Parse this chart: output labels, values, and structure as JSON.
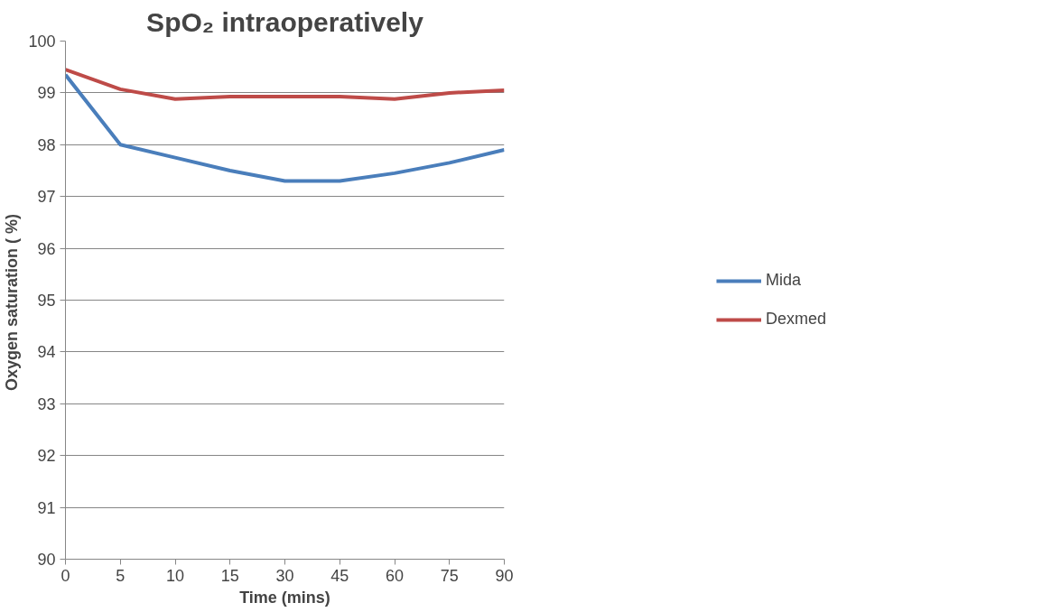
{
  "chart_data": {
    "type": "line",
    "title": "SpO₂ intraoperatively",
    "xlabel": "Time (mins)",
    "ylabel": "Oxygen saturation  ( %)",
    "categories": [
      "0",
      "5",
      "10",
      "15",
      "30",
      "45",
      "60",
      "75",
      "90"
    ],
    "series": [
      {
        "name": "Mida",
        "color": "#4a7ebb",
        "values": [
          99.35,
          98.0,
          97.75,
          97.5,
          97.3,
          97.3,
          97.45,
          97.65,
          97.9
        ]
      },
      {
        "name": "Dexmed",
        "color": "#be4b48",
        "values": [
          99.45,
          99.07,
          98.88,
          98.93,
          98.93,
          98.93,
          98.88,
          99.0,
          99.05
        ]
      }
    ],
    "ylim": [
      90,
      100
    ],
    "yticks": [
      90,
      91,
      92,
      93,
      94,
      95,
      96,
      97,
      98,
      99,
      100
    ],
    "grid": "y",
    "legend": "right",
    "marker": "none",
    "line_style": "solid"
  }
}
